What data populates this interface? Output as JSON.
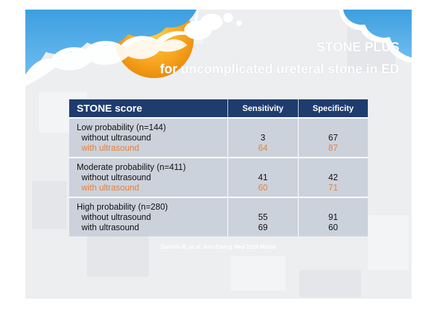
{
  "title": {
    "line1": "STONE PLUS",
    "line2": "for uncomplicated ureteral stone in ED"
  },
  "table": {
    "headers": {
      "score": "STONE score",
      "sensitivity": "Sensitivity",
      "specificity": "Specificity"
    },
    "groups": [
      {
        "label": "Low probability (n=144)",
        "rows": [
          {
            "label": "without ultrasound",
            "sensitivity": "3",
            "specificity": "67"
          },
          {
            "label": "with ultrasound",
            "sensitivity": "64",
            "specificity": "87"
          }
        ]
      },
      {
        "label": "Moderate probability (n=411)",
        "rows": [
          {
            "label": "without ultrasound",
            "sensitivity": "41",
            "specificity": "42"
          },
          {
            "label": "with ultrasound",
            "sensitivity": "60",
            "specificity": "71"
          }
        ]
      },
      {
        "label": "High probability (n=280)",
        "rows": [
          {
            "label": "without ultrasound",
            "sensitivity": "55",
            "specificity": "91"
          },
          {
            "label": "with ultrasound",
            "sensitivity": "69",
            "specificity": "60"
          }
        ]
      }
    ]
  },
  "citation": {
    "authors": "Daniels B, et al.",
    "journal": "Ann Emerg Med",
    "date": "2016 March"
  },
  "colors": {
    "header_bg": "#1f3c6e",
    "cell_bg": "#ccd2dc",
    "highlight": "#e8803a"
  }
}
